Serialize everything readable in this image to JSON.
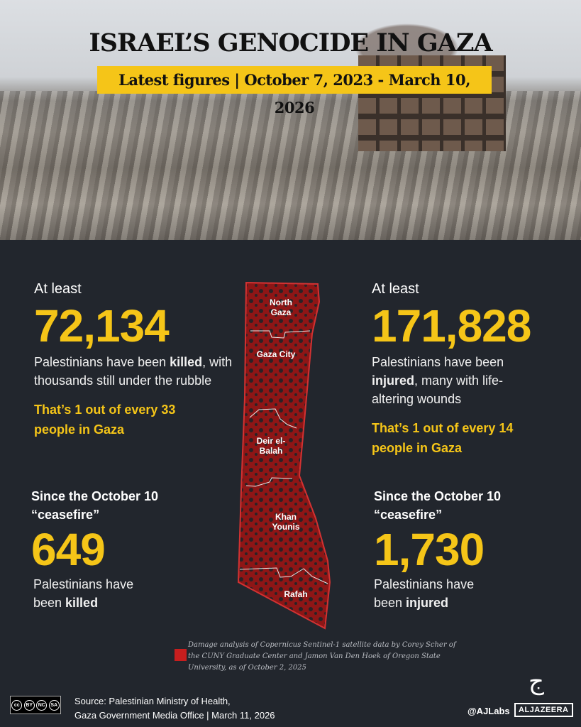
{
  "header": {
    "title": "ISRAEL’S GENOCIDE IN GAZA",
    "subtitle": "Latest figures | October 7, 2023 - March 10, 2026"
  },
  "killed": {
    "label": "At least",
    "number": "72,134",
    "desc_pre": "Palestinians have been ",
    "desc_bold": "killed",
    "desc_post": ", with thousands still under the rubble",
    "ratio": "That’s 1 out of every 33 people in Gaza"
  },
  "injured": {
    "label": "At least",
    "number": "171,828",
    "desc_pre": "Palestinians have been ",
    "desc_bold": "injured",
    "desc_post": ", many with life-altering wounds",
    "ratio": "That’s 1 out of every 14 people in Gaza"
  },
  "ceasefire_killed": {
    "label": "Since the October 10 “ceasefire”",
    "number": "649",
    "desc_pre": "Palestinians have been ",
    "desc_bold": "killed"
  },
  "ceasefire_injured": {
    "label": "Since the October 10 “ceasefire”",
    "number": "1,730",
    "desc_pre": "Palestinians have been ",
    "desc_bold": "injured"
  },
  "map": {
    "regions": [
      "North Gaza",
      "Gaza City",
      "Deir el-Balah",
      "Khan Younis",
      "Rafah"
    ],
    "damage_color": "#c81e1e"
  },
  "legend_note": "Damage analysis of Copernicus Sentinel-1 satellite data by  Corey Scher of the CUNY Graduate Center and Jamon Van Den Hoek of Oregon State University, as of  October 2, 2025",
  "footer": {
    "source": "Source:  Palestinian Ministry of Health,",
    "source2": "Gaza Government Media Office   |   March 11, 2026",
    "license": [
      "cc",
      "BY",
      "NC",
      "SA"
    ],
    "handle": "@AJLabs",
    "brand": "ALJAZEERA"
  },
  "colors": {
    "accent": "#f5c518",
    "background": "#22262d"
  }
}
